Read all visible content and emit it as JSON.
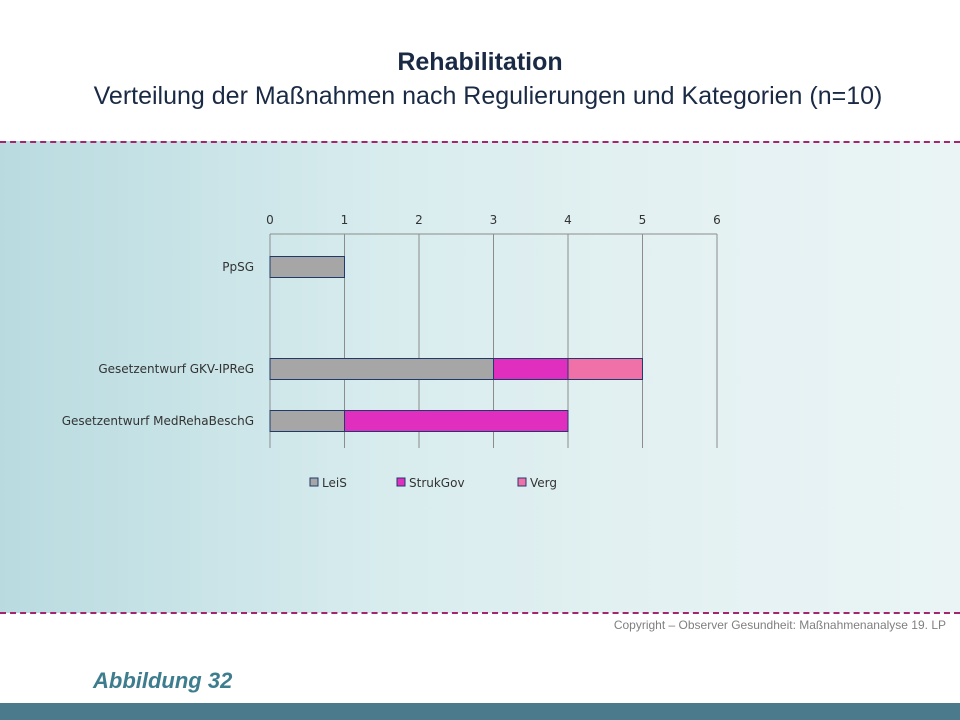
{
  "title": "Rehabilitation",
  "subtitle": "Verteilung der Maßnahmen nach Regulierungen und Kategorien (n=10)",
  "copyright": "Copyright – Observer Gesundheit: Maßnahmenanalyse 19. LP",
  "caption": "Abbildung 32",
  "colors": {
    "accent_dash": "#a3246f",
    "footer_bar": "#4b7a8c"
  },
  "chart_data": {
    "type": "bar",
    "orientation": "horizontal",
    "stacked": true,
    "categories": [
      "PpSG",
      "Gesetzentwurf GKV-IPReG",
      "Gesetzentwurf MedRehaBeschG"
    ],
    "series": [
      {
        "name": "LeiS",
        "color": "#a6a6a6",
        "values": [
          1,
          3,
          1
        ]
      },
      {
        "name": "StrukGov",
        "color": "#e02fbe",
        "values": [
          0,
          1,
          3
        ]
      },
      {
        "name": "Verg",
        "color": "#f071a8",
        "values": [
          0,
          1,
          0
        ]
      }
    ],
    "xlim": [
      0,
      6
    ],
    "xticks": [
      0,
      1,
      2,
      3,
      4,
      5,
      6
    ],
    "x_axis_position": "top",
    "grid": true,
    "legend_position": "bottom"
  }
}
